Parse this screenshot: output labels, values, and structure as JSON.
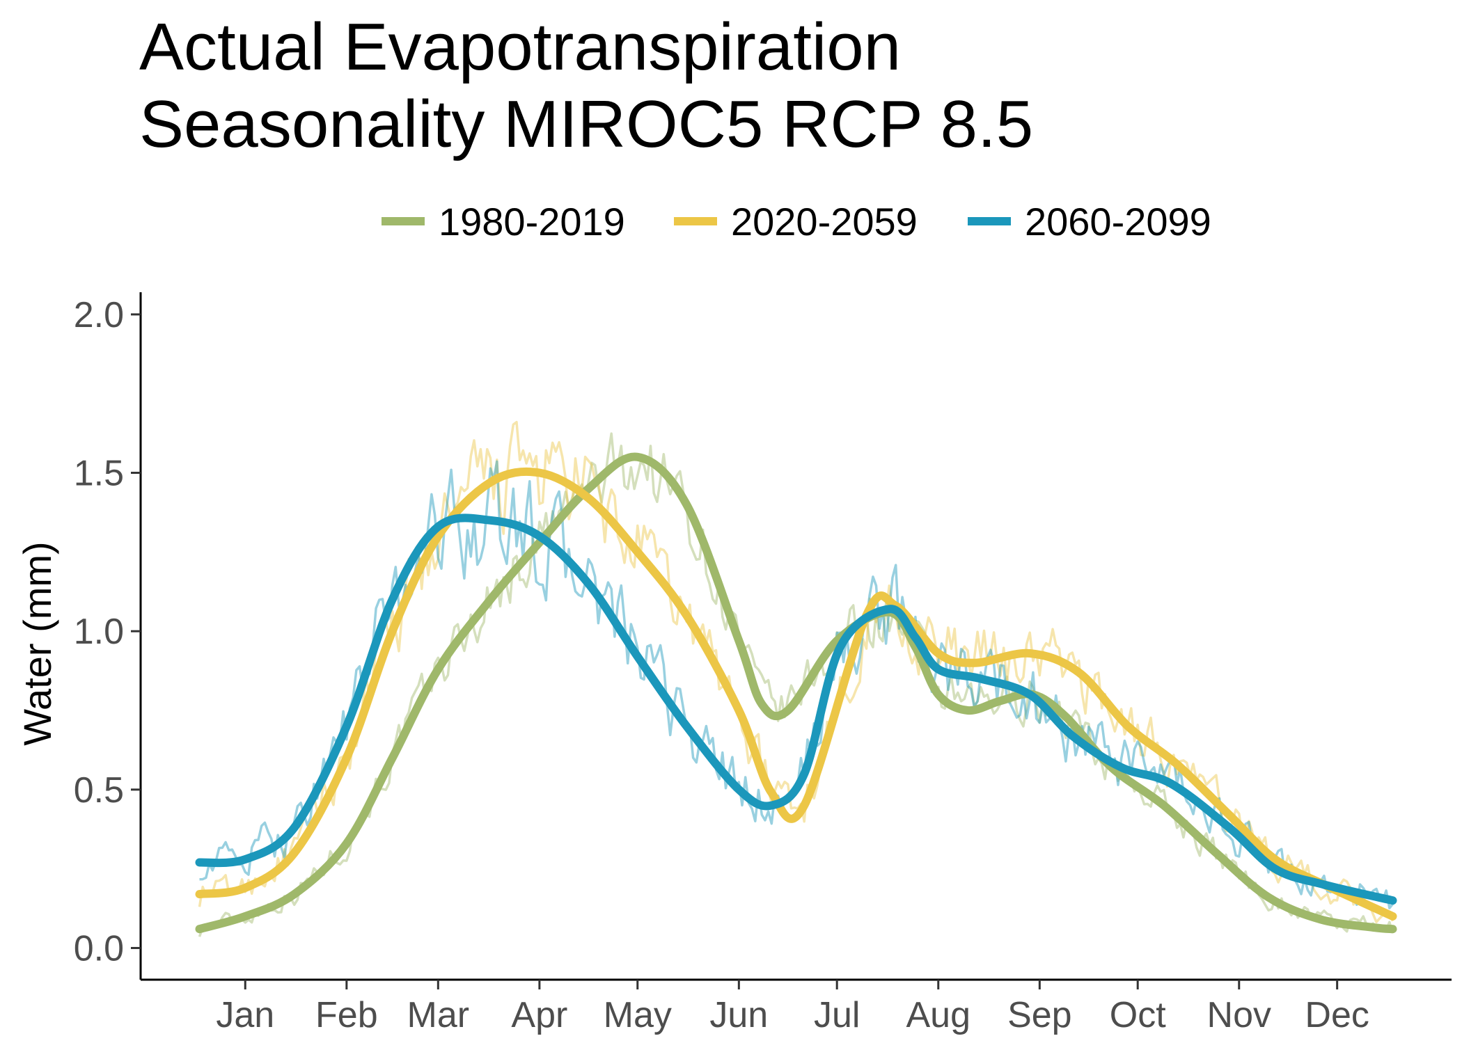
{
  "chart_data": {
    "type": "line",
    "title_lines": [
      "Actual Evapotranspiration",
      "Seasonality MIROC5 RCP 8.5"
    ],
    "xlabel": "",
    "ylabel": "Water (mm)",
    "x_unit": "day of year",
    "x_ticks": [
      {
        "x": 15,
        "label": "Jan"
      },
      {
        "x": 46,
        "label": "Feb"
      },
      {
        "x": 74,
        "label": "Mar"
      },
      {
        "x": 105,
        "label": "Apr"
      },
      {
        "x": 135,
        "label": "May"
      },
      {
        "x": 166,
        "label": "Jun"
      },
      {
        "x": 196,
        "label": "Jul"
      },
      {
        "x": 227,
        "label": "Aug"
      },
      {
        "x": 258,
        "label": "Sep"
      },
      {
        "x": 288,
        "label": "Oct"
      },
      {
        "x": 319,
        "label": "Nov"
      },
      {
        "x": 349,
        "label": "Dec"
      }
    ],
    "xlim": [
      -17,
      384
    ],
    "ylim": [
      -0.1,
      2.07
    ],
    "y_ticks": [
      0.0,
      0.5,
      1.0,
      1.5,
      2.0
    ],
    "y_tick_labels": [
      "0.0",
      "0.5",
      "1.0",
      "1.5",
      "2.0"
    ],
    "grid": false,
    "legend_position": "top",
    "series": [
      {
        "name": "1980-2019",
        "color": "#9fb86a",
        "x": [
          1,
          15,
          30,
          46,
          60,
          74,
          90,
          105,
          120,
          135,
          150,
          166,
          173,
          181,
          196,
          212,
          220,
          227,
          236,
          246,
          256,
          266,
          280,
          296,
          312,
          328,
          344,
          360,
          366
        ],
        "smooth": [
          0.06,
          0.1,
          0.17,
          0.33,
          0.6,
          0.88,
          1.1,
          1.28,
          1.45,
          1.55,
          1.4,
          0.97,
          0.77,
          0.75,
          0.97,
          1.06,
          0.95,
          0.8,
          0.75,
          0.78,
          0.8,
          0.73,
          0.57,
          0.45,
          0.3,
          0.16,
          0.09,
          0.065,
          0.06
        ],
        "noise_amplitude": 0.06
      },
      {
        "name": "2020-2059",
        "color": "#ecc646",
        "x": [
          1,
          15,
          30,
          46,
          60,
          74,
          90,
          105,
          120,
          135,
          150,
          166,
          176,
          186,
          205,
          214,
          227,
          238,
          255,
          270,
          285,
          300,
          316,
          330,
          345,
          366
        ],
        "smooth": [
          0.17,
          0.19,
          0.3,
          0.6,
          1.0,
          1.3,
          1.47,
          1.5,
          1.42,
          1.25,
          1.05,
          0.75,
          0.49,
          0.45,
          1.05,
          1.08,
          0.93,
          0.9,
          0.93,
          0.87,
          0.7,
          0.58,
          0.42,
          0.28,
          0.2,
          0.1
        ],
        "noise_amplitude": 0.08
      },
      {
        "name": "2060-2099",
        "color": "#1b97bb",
        "x": [
          1,
          15,
          30,
          46,
          60,
          74,
          90,
          105,
          120,
          135,
          150,
          166,
          176,
          186,
          197,
          212,
          220,
          227,
          240,
          255,
          268,
          283,
          298,
          316,
          330,
          345,
          366
        ],
        "smooth": [
          0.27,
          0.28,
          0.38,
          0.7,
          1.1,
          1.33,
          1.35,
          1.3,
          1.15,
          0.92,
          0.7,
          0.5,
          0.45,
          0.55,
          0.95,
          1.07,
          0.98,
          0.88,
          0.85,
          0.8,
          0.67,
          0.57,
          0.52,
          0.38,
          0.25,
          0.2,
          0.15
        ],
        "noise_amplitude": 0.09
      }
    ]
  }
}
